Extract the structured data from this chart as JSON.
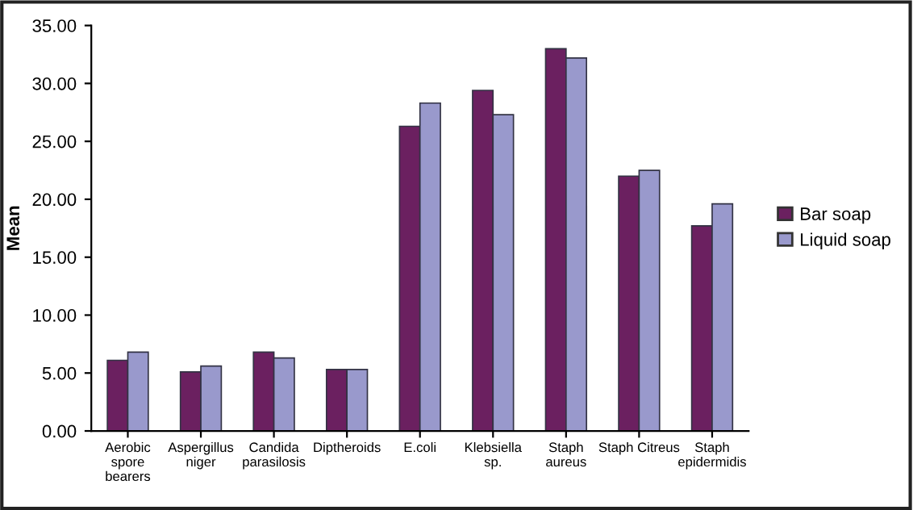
{
  "chart_data": {
    "type": "bar",
    "ylabel": "Mean",
    "categories": [
      "Aerobic\nspore\nbearers",
      "Aspergillus\nniger",
      "Candida\nparasilosis",
      "Diptheroids",
      "E.coli",
      "Klebsiella\nsp.",
      "Staph\naureus",
      "Staph Citreus",
      "Staph\nepidermidis"
    ],
    "series": [
      {
        "name": "Bar soap",
        "color": "#6b2060",
        "values": [
          6.1,
          5.1,
          6.8,
          5.3,
          26.3,
          29.4,
          33.0,
          22.0,
          17.7
        ]
      },
      {
        "name": "Liquid soap",
        "color": "#9999cc",
        "values": [
          6.8,
          5.6,
          6.3,
          5.3,
          28.3,
          27.3,
          32.2,
          22.5,
          19.6
        ]
      }
    ],
    "ylim": [
      0,
      35
    ],
    "yticks": [
      {
        "value": 0,
        "label": "0.00"
      },
      {
        "value": 5,
        "label": "5.00"
      },
      {
        "value": 10,
        "label": "10.00"
      },
      {
        "value": 15,
        "label": "15.00"
      },
      {
        "value": 20,
        "label": "20.00"
      },
      {
        "value": 25,
        "label": "25.00"
      },
      {
        "value": 30,
        "label": "30.00"
      },
      {
        "value": 35,
        "label": "35.00"
      }
    ],
    "grid": false,
    "legend": "right"
  }
}
